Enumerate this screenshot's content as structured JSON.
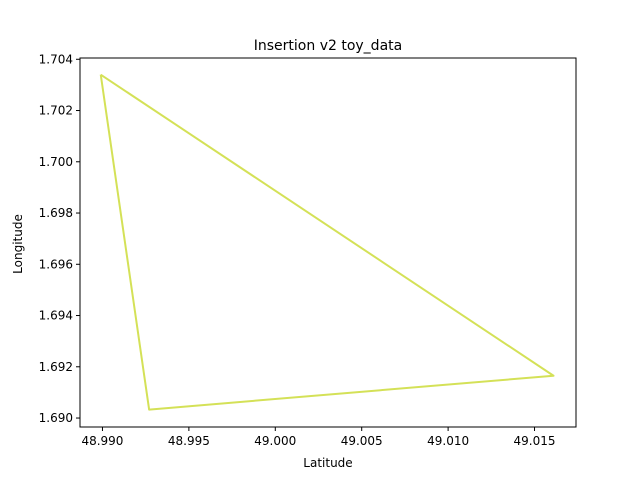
{
  "chart_data": {
    "type": "line",
    "title": "Insertion v2 toy_data",
    "xlabel": "Latitude",
    "ylabel": "Longitude",
    "xlim": [
      48.9887,
      49.0174
    ],
    "ylim": [
      1.68965,
      1.70405
    ],
    "xticks": [
      48.99,
      48.995,
      49.0,
      49.005,
      49.01,
      49.015
    ],
    "xtick_labels": [
      "48.990",
      "48.995",
      "49.000",
      "49.005",
      "49.010",
      "49.015"
    ],
    "yticks": [
      1.69,
      1.692,
      1.694,
      1.696,
      1.698,
      1.7,
      1.702,
      1.704
    ],
    "ytick_labels": [
      "1.690",
      "1.692",
      "1.694",
      "1.696",
      "1.698",
      "1.700",
      "1.702",
      "1.704"
    ],
    "grid": false,
    "series": [
      {
        "color": "#d4e157",
        "x": [
          48.9899,
          48.9927,
          49.0161,
          48.9899
        ],
        "y": [
          1.7034,
          1.69033,
          1.69165,
          1.7034
        ]
      }
    ]
  }
}
